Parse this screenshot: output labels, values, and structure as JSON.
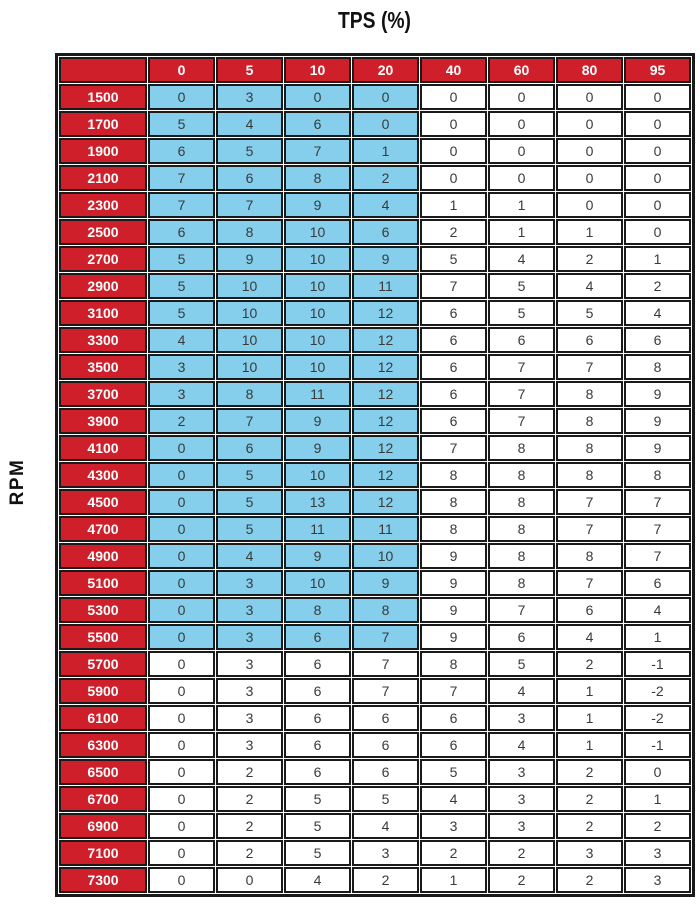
{
  "page": {
    "title": "TPS (%)",
    "y_axis_label": "RPM"
  },
  "colors": {
    "header_red": "#CE1F2B",
    "highlight_blue": "#85CFEC",
    "cell_white": "#FFFFFF",
    "grid_border": "#1A1A1A",
    "header_text": "#FFFFFF",
    "cell_text": "#3A3A3A"
  },
  "chart_data": {
    "type": "table",
    "title": "TPS (%)",
    "xlabel": "TPS (%)",
    "ylabel": "RPM",
    "columns": [
      "0",
      "5",
      "10",
      "20",
      "40",
      "60",
      "80",
      "95"
    ],
    "rows": [
      "1500",
      "1700",
      "1900",
      "2100",
      "2300",
      "2500",
      "2700",
      "2900",
      "3100",
      "3300",
      "3500",
      "3700",
      "3900",
      "4100",
      "4300",
      "4500",
      "4700",
      "4900",
      "5100",
      "5300",
      "5500",
      "5700",
      "5900",
      "6100",
      "6300",
      "6500",
      "6700",
      "6900",
      "7100",
      "7300"
    ],
    "values": [
      [
        0,
        3,
        0,
        0,
        0,
        0,
        0,
        0
      ],
      [
        5,
        4,
        6,
        0,
        0,
        0,
        0,
        0
      ],
      [
        6,
        5,
        7,
        1,
        0,
        0,
        0,
        0
      ],
      [
        7,
        6,
        8,
        2,
        0,
        0,
        0,
        0
      ],
      [
        7,
        7,
        9,
        4,
        1,
        1,
        0,
        0
      ],
      [
        6,
        8,
        10,
        6,
        2,
        1,
        1,
        0
      ],
      [
        5,
        9,
        10,
        9,
        5,
        4,
        2,
        1
      ],
      [
        5,
        10,
        10,
        11,
        7,
        5,
        4,
        2
      ],
      [
        5,
        10,
        10,
        12,
        6,
        5,
        5,
        4
      ],
      [
        4,
        10,
        10,
        12,
        6,
        6,
        6,
        6
      ],
      [
        3,
        10,
        10,
        12,
        6,
        7,
        7,
        8
      ],
      [
        3,
        8,
        11,
        12,
        6,
        7,
        8,
        9
      ],
      [
        2,
        7,
        9,
        12,
        6,
        7,
        8,
        9
      ],
      [
        0,
        6,
        9,
        12,
        7,
        8,
        8,
        9
      ],
      [
        0,
        5,
        10,
        12,
        8,
        8,
        8,
        8
      ],
      [
        0,
        5,
        13,
        12,
        8,
        8,
        7,
        7
      ],
      [
        0,
        5,
        11,
        11,
        8,
        8,
        7,
        7
      ],
      [
        0,
        4,
        9,
        10,
        9,
        8,
        8,
        7
      ],
      [
        0,
        3,
        10,
        9,
        9,
        8,
        7,
        6
      ],
      [
        0,
        3,
        8,
        8,
        9,
        7,
        6,
        4
      ],
      [
        0,
        3,
        6,
        7,
        9,
        6,
        4,
        1
      ],
      [
        0,
        3,
        6,
        7,
        8,
        5,
        2,
        -1
      ],
      [
        0,
        3,
        6,
        7,
        7,
        4,
        1,
        -2
      ],
      [
        0,
        3,
        6,
        6,
        6,
        3,
        1,
        -2
      ],
      [
        0,
        3,
        6,
        6,
        6,
        4,
        1,
        -1
      ],
      [
        0,
        2,
        6,
        6,
        5,
        3,
        2,
        0
      ],
      [
        0,
        2,
        5,
        5,
        4,
        3,
        2,
        1
      ],
      [
        0,
        2,
        5,
        4,
        3,
        3,
        2,
        2
      ],
      [
        0,
        2,
        5,
        3,
        2,
        2,
        3,
        3
      ],
      [
        0,
        0,
        4,
        2,
        1,
        2,
        2,
        3
      ]
    ],
    "highlight": {
      "note": "light-blue highlighted region",
      "color": "#85CFEC",
      "row_start": 0,
      "row_end": 20,
      "col_start": 0,
      "col_end": 3
    },
    "grid": true,
    "legend": false
  }
}
